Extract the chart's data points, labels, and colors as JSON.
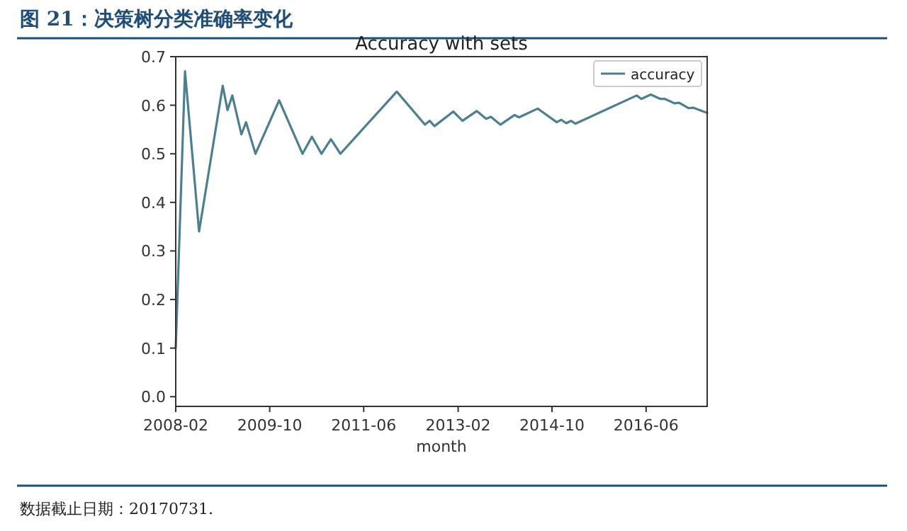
{
  "chart_data": {
    "type": "line",
    "title": "Accuracy with sets",
    "subtitle": "图 21：决策树分类准确率变化",
    "xlabel": "month",
    "x": [
      "2008-02",
      "2008-04",
      "2008-07",
      "2008-12",
      "2009-01",
      "2009-02",
      "2009-04",
      "2009-05",
      "2009-07",
      "2009-12",
      "2010-05",
      "2010-07",
      "2010-09",
      "2010-11",
      "2011-01",
      "2012-01",
      "2012-07",
      "2012-08",
      "2012-09",
      "2013-01",
      "2013-03",
      "2013-06",
      "2013-08",
      "2013-09",
      "2013-11",
      "2014-02",
      "2014-03",
      "2014-07",
      "2014-11",
      "2014-12",
      "2015-01",
      "2015-02",
      "2015-03",
      "2016-04",
      "2016-05",
      "2016-07",
      "2016-09",
      "2016-10",
      "2016-12",
      "2017-01",
      "2017-03",
      "2017-04",
      "2017-07"
    ],
    "series": [
      {
        "name": "accuracy",
        "color": "#4c7f8f",
        "values": [
          0.1,
          0.67,
          0.34,
          0.64,
          0.59,
          0.62,
          0.54,
          0.565,
          0.5,
          0.61,
          0.5,
          0.535,
          0.5,
          0.53,
          0.5,
          0.628,
          0.56,
          0.568,
          0.557,
          0.587,
          0.568,
          0.588,
          0.572,
          0.576,
          0.56,
          0.58,
          0.575,
          0.593,
          0.565,
          0.57,
          0.563,
          0.568,
          0.562,
          0.62,
          0.613,
          0.622,
          0.613,
          0.613,
          0.604,
          0.605,
          0.594,
          0.595,
          0.584
        ]
      }
    ],
    "xlim": [
      "2008-02",
      "2017-07"
    ],
    "xticks": [
      "2008-02",
      "2009-10",
      "2011-06",
      "2013-02",
      "2014-10",
      "2016-06"
    ],
    "ylim": [
      -0.02,
      0.7
    ],
    "yticks": [
      {
        "value": 0,
        "label": "0.0"
      },
      0.1,
      0.2,
      0.3,
      0.4,
      0.5,
      0.6,
      0.7
    ],
    "grid": false,
    "legend": "top right",
    "line_style": "solid",
    "marker": "none",
    "annotations": [
      "数据截止日期：20170731."
    ]
  }
}
